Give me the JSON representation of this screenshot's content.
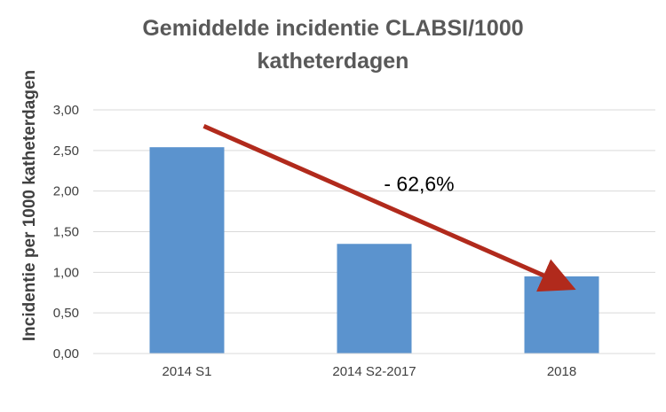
{
  "chart_data": {
    "type": "bar",
    "title_lines": [
      "Gemiddelde incidentie CLABSI/1000",
      "katheterdagen"
    ],
    "xlabel": "",
    "ylabel": "Incidentie per 1000 katheterdagen",
    "categories": [
      "2014 S1",
      "2014 S2-2017",
      "2018"
    ],
    "values": [
      2.54,
      1.35,
      0.95
    ],
    "ylim": [
      0,
      3
    ],
    "yticks": [
      "0,00",
      "0,50",
      "1,00",
      "1,50",
      "2,00",
      "2,50",
      "3,00"
    ],
    "grid": true,
    "legend": "none",
    "colors": {
      "bar": "#5B93CE",
      "grid": "#D9D9D9",
      "arrow": "#B12A1C",
      "title": "#595959"
    },
    "annotation": {
      "text": "- 62,6%",
      "arrow_from_value": 2.8,
      "arrow_to_value": 0.83
    }
  }
}
